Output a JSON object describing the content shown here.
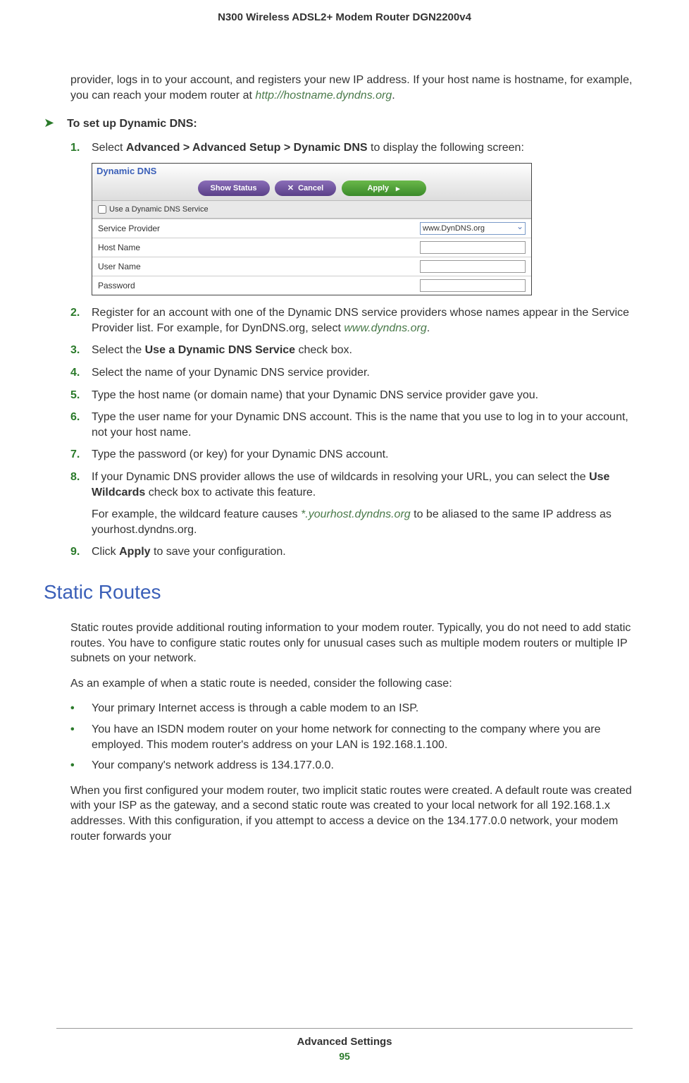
{
  "header": {
    "title": "N300 Wireless ADSL2+ Modem Router DGN2200v4"
  },
  "intro": {
    "text_part1": "provider, logs in to your account, and registers your new IP address. If your host name is hostname, for example, you can reach your modem router at ",
    "link": "http://hostname.dyndns.org",
    "text_part2": "."
  },
  "procedure": {
    "arrow": "➤",
    "title": "To set up Dynamic DNS:"
  },
  "steps": {
    "s1": {
      "num": "1.",
      "text_a": "Select ",
      "bold": "Advanced > Advanced Setup > Dynamic DNS",
      "text_b": " to display the following screen:"
    },
    "s2": {
      "num": "2.",
      "text_a": "Register for an account with one of the Dynamic DNS service providers whose names appear in the Service Provider list. For example, for DynDNS.org, select ",
      "link": "www.dyndns.org",
      "text_b": "."
    },
    "s3": {
      "num": "3.",
      "text_a": "Select the ",
      "bold": "Use a Dynamic DNS Service",
      "text_b": " check box."
    },
    "s4": {
      "num": "4.",
      "text": "Select the name of your Dynamic DNS service provider."
    },
    "s5": {
      "num": "5.",
      "text": "Type the host name (or domain name) that your Dynamic DNS service provider gave you."
    },
    "s6": {
      "num": "6.",
      "text": "Type the user name for your Dynamic DNS account. This is the name that you use to log in to your account, not your host name."
    },
    "s7": {
      "num": "7.",
      "text": "Type the password (or key) for your Dynamic DNS account."
    },
    "s8": {
      "num": "8.",
      "text_a": "If your Dynamic DNS provider allows the use of wildcards in resolving your URL, you can select the ",
      "bold": "Use Wildcards",
      "text_b": " check box to activate this feature.",
      "sub_a": "For example, the wildcard feature causes ",
      "sub_link": "*.yourhost.dyndns.org",
      "sub_b": " to be aliased to the same IP address as yourhost.dyndns.org."
    },
    "s9": {
      "num": "9.",
      "text_a": "Click ",
      "bold": "Apply",
      "text_b": " to save your configuration."
    }
  },
  "panel": {
    "title": "Dynamic DNS",
    "btn_status": "Show Status",
    "btn_cancel_x": "✕",
    "btn_cancel": "Cancel",
    "btn_apply": "Apply",
    "btn_apply_arrow": "▸",
    "checkbox_label": "Use a Dynamic DNS Service",
    "row_provider": "Service Provider",
    "provider_value": "www.DynDNS.org",
    "row_host": "Host Name",
    "row_user": "User Name",
    "row_pass": "Password"
  },
  "section": {
    "heading": "Static Routes",
    "p1": "Static routes provide additional routing information to your modem router. Typically, you do not need to add static routes. You have to configure static routes only for unusual cases such as multiple modem routers or multiple IP subnets on your network.",
    "p2": "As an example of when a static route is needed, consider the following case:",
    "b1": "Your primary Internet access is through a cable modem to an ISP.",
    "b2": "You have an ISDN modem router on your home network for connecting to the company where you are employed. This modem router's address on your LAN is 192.168.1.100.",
    "b3": "Your company's network address is 134.177.0.0.",
    "p3": "When you first configured your modem router, two implicit static routes were created. A default route was created with your ISP as the gateway, and a second static route was created to your local network for all 192.168.1.x addresses. With this configuration, if you attempt to access a device on the 134.177.0.0 network, your modem router forwards your"
  },
  "footer": {
    "title": "Advanced Settings",
    "page": "95"
  },
  "bullet": "•"
}
